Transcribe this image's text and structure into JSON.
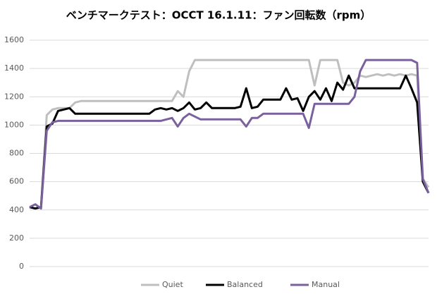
{
  "chart_data": {
    "type": "line",
    "title": "ベンチマークテスト：OCCT 16.1.11：ファン回転数（rpm）",
    "categories": [
      null,
      null,
      null,
      null,
      null,
      null,
      null,
      null,
      null,
      null,
      null,
      null,
      null,
      null,
      null,
      null,
      null,
      null,
      null,
      null,
      null,
      null,
      null,
      null,
      null,
      null,
      null,
      null,
      null,
      null,
      null,
      null,
      null,
      null,
      null,
      null,
      null,
      null,
      null,
      null,
      null,
      null,
      null,
      null,
      null,
      null,
      null,
      null,
      null,
      null,
      null,
      null,
      null,
      null,
      null,
      null,
      null,
      null,
      null,
      null,
      null,
      null,
      null,
      null,
      null,
      null,
      null,
      null,
      null,
      null,
      null
    ],
    "series": [
      {
        "name": "Quiet",
        "color": "#bfbfbf",
        "values": [
          420,
          410,
          420,
          1070,
          1110,
          1120,
          1120,
          1120,
          1160,
          1170,
          1170,
          1170,
          1170,
          1170,
          1170,
          1170,
          1170,
          1170,
          1170,
          1170,
          1170,
          1170,
          1170,
          1170,
          1170,
          1170,
          1240,
          1200,
          1380,
          1460,
          1460,
          1460,
          1460,
          1460,
          1460,
          1460,
          1460,
          1460,
          1460,
          1460,
          1460,
          1460,
          1460,
          1460,
          1460,
          1460,
          1460,
          1460,
          1460,
          1460,
          1280,
          1460,
          1460,
          1460,
          1460,
          1300,
          1280,
          1300,
          1350,
          1340,
          1350,
          1360,
          1350,
          1360,
          1350,
          1360,
          1350,
          1360,
          1350,
          620,
          560
        ]
      },
      {
        "name": "Balanced",
        "color": "#000000",
        "values": [
          420,
          410,
          420,
          990,
          1010,
          1100,
          1110,
          1120,
          1080,
          1080,
          1080,
          1080,
          1080,
          1080,
          1080,
          1080,
          1080,
          1080,
          1080,
          1080,
          1080,
          1080,
          1110,
          1120,
          1110,
          1120,
          1100,
          1120,
          1160,
          1110,
          1120,
          1160,
          1120,
          1120,
          1120,
          1120,
          1120,
          1130,
          1260,
          1120,
          1130,
          1180,
          1180,
          1180,
          1180,
          1260,
          1180,
          1190,
          1100,
          1200,
          1240,
          1180,
          1260,
          1170,
          1300,
          1250,
          1350,
          1260,
          1260,
          1260,
          1260,
          1260,
          1260,
          1260,
          1260,
          1260,
          1350,
          1260,
          1160,
          600,
          520
        ]
      },
      {
        "name": "Manual",
        "color": "#7a619e",
        "values": [
          420,
          440,
          410,
          960,
          1020,
          1030,
          1030,
          1030,
          1030,
          1030,
          1030,
          1030,
          1030,
          1030,
          1030,
          1030,
          1030,
          1030,
          1030,
          1030,
          1030,
          1030,
          1030,
          1030,
          1040,
          1050,
          990,
          1050,
          1080,
          1060,
          1040,
          1040,
          1040,
          1040,
          1040,
          1040,
          1040,
          1040,
          990,
          1050,
          1050,
          1080,
          1080,
          1080,
          1080,
          1080,
          1080,
          1080,
          1080,
          980,
          1150,
          1150,
          1150,
          1150,
          1150,
          1150,
          1150,
          1200,
          1380,
          1460,
          1460,
          1460,
          1460,
          1460,
          1460,
          1460,
          1460,
          1460,
          1440,
          620,
          520
        ]
      }
    ],
    "ylim": [
      0,
      1600
    ],
    "yticks": [
      0,
      200,
      400,
      600,
      800,
      1000,
      1200,
      1400,
      1600
    ],
    "grid": true,
    "legend": "bottom"
  }
}
